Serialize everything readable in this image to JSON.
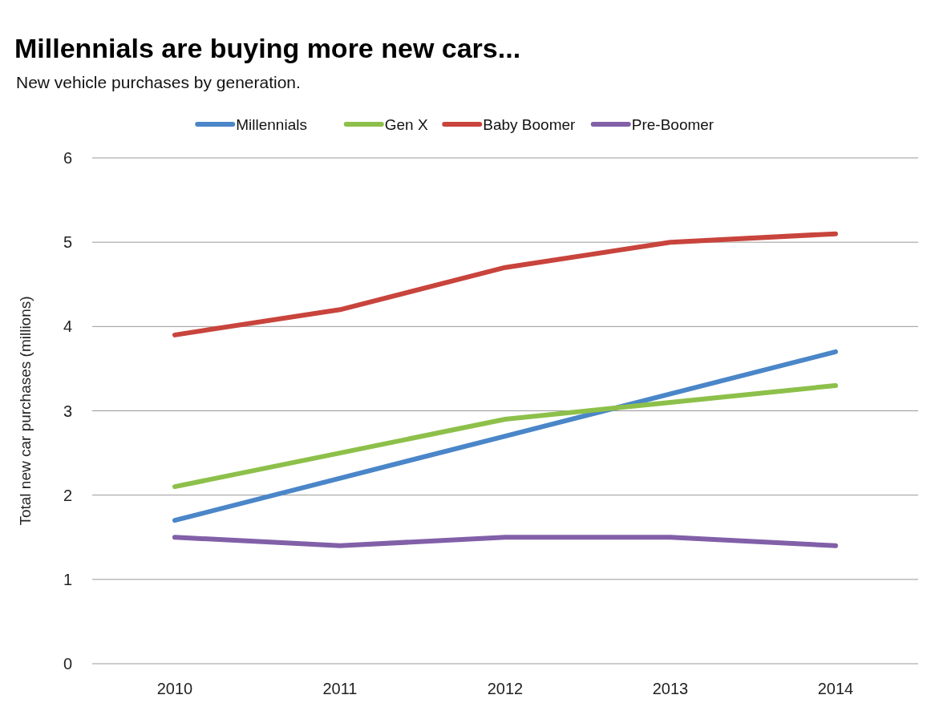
{
  "chart_data": {
    "type": "line",
    "title": "Millennials are buying more new cars...",
    "subtitle": "New vehicle purchases by generation.",
    "ylabel": "Total new car purchases (millions)",
    "categories": [
      "2010",
      "2011",
      "2012",
      "2013",
      "2014"
    ],
    "series": [
      {
        "name": "Millennials",
        "color": "#4a86c8",
        "values": [
          1.7,
          2.2,
          2.7,
          3.2,
          3.7
        ]
      },
      {
        "name": "Gen X",
        "color": "#8dc04a",
        "values": [
          2.1,
          2.5,
          2.9,
          3.1,
          3.3
        ]
      },
      {
        "name": "Baby Boomer",
        "color": "#c8443c",
        "values": [
          3.9,
          4.2,
          4.7,
          5.0,
          5.1
        ]
      },
      {
        "name": "Pre-Boomer",
        "color": "#8160a8",
        "values": [
          1.5,
          1.4,
          1.5,
          1.5,
          1.4
        ]
      }
    ],
    "ylim": [
      0,
      6
    ],
    "yticks": [
      0,
      1,
      2,
      3,
      4,
      5,
      6
    ],
    "grid": "y",
    "legend": "top",
    "marker": "none",
    "line_style": "solid"
  }
}
